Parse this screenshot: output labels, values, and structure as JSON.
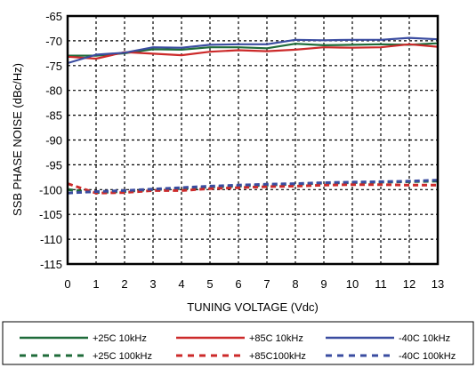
{
  "chart_data": {
    "type": "line",
    "xlabel": "TUNING VOLTAGE (Vdc)",
    "ylabel": "SSB PHASE NOISE (dBc/Hz)",
    "xlim": [
      0,
      13
    ],
    "ylim": [
      -115,
      -65
    ],
    "x_ticks": [
      "0",
      "1",
      "2",
      "3",
      "4",
      "5",
      "6",
      "7",
      "8",
      "9",
      "10",
      "11",
      "12",
      "13"
    ],
    "y_ticks": [
      "-65",
      "-70",
      "-75",
      "-80",
      "-85",
      "-90",
      "-95",
      "-100",
      "-105",
      "-110",
      "-115"
    ],
    "grid": true,
    "legend_position": "bottom",
    "x": [
      0,
      1,
      2,
      3,
      4,
      5,
      6,
      7,
      8,
      9,
      10,
      11,
      12,
      13
    ],
    "series": [
      {
        "name": "+25C 10kHz",
        "color": "#1f6b3a",
        "style": "solid",
        "values": [
          -73.0,
          -73.0,
          -72.5,
          -71.7,
          -71.8,
          -71.3,
          -71.3,
          -71.5,
          -70.6,
          -70.9,
          -70.8,
          -70.7,
          -70.8,
          -70.5
        ]
      },
      {
        "name": "+85C 10kHz",
        "color": "#cc2a2a",
        "style": "solid",
        "values": [
          -73.2,
          -73.6,
          -72.3,
          -72.6,
          -72.9,
          -72.2,
          -71.9,
          -72.1,
          -71.8,
          -71.3,
          -71.4,
          -71.3,
          -70.7,
          -71.2
        ]
      },
      {
        "name": "-40C 10kHz",
        "color": "#3a4ca0",
        "style": "solid",
        "values": [
          -74.5,
          -72.8,
          -72.4,
          -71.3,
          -71.4,
          -70.8,
          -70.7,
          -70.7,
          -69.8,
          -69.9,
          -69.8,
          -69.8,
          -69.4,
          -69.7
        ]
      },
      {
        "name": "+25C 100kHz",
        "color": "#1f6b3a",
        "style": "dashed",
        "values": [
          -100.0,
          -100.6,
          -100.4,
          -100.0,
          -99.8,
          -99.5,
          -99.3,
          -99.1,
          -98.9,
          -98.7,
          -98.6,
          -98.5,
          -98.4,
          -98.3
        ]
      },
      {
        "name": "+85C100kHz",
        "color": "#cc2a2a",
        "style": "dashed",
        "values": [
          -98.8,
          -100.7,
          -100.6,
          -100.2,
          -100.2,
          -99.8,
          -99.6,
          -99.4,
          -99.3,
          -99.1,
          -99.0,
          -99.0,
          -99.1,
          -99.1
        ]
      },
      {
        "name": "-40C 100kHz",
        "color": "#3a4ca0",
        "style": "dashed",
        "values": [
          -100.7,
          -100.4,
          -100.2,
          -99.9,
          -99.6,
          -99.3,
          -99.1,
          -98.9,
          -98.8,
          -98.6,
          -98.5,
          -98.4,
          -98.3,
          -98.1
        ]
      }
    ]
  }
}
